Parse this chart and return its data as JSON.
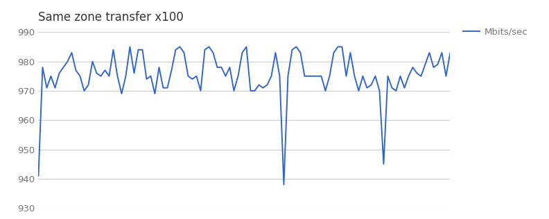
{
  "title": "Same zone transfer x100",
  "legend_label": "Mbits/sec",
  "line_color": "#3366cc",
  "background_color": "#ffffff",
  "ylim": [
    930,
    992
  ],
  "yticks": [
    930,
    940,
    950,
    960,
    970,
    980,
    990
  ],
  "title_fontsize": 12,
  "line_width": 1.4,
  "values": [
    941,
    978,
    971,
    975,
    971,
    976,
    978,
    980,
    983,
    977,
    975,
    970,
    972,
    980,
    976,
    975,
    977,
    975,
    984,
    975,
    969,
    975,
    985,
    976,
    984,
    984,
    974,
    975,
    969,
    978,
    971,
    971,
    977,
    984,
    985,
    983,
    975,
    974,
    975,
    970,
    984,
    985,
    983,
    978,
    978,
    975,
    978,
    970,
    975,
    983,
    985,
    970,
    970,
    972,
    971,
    972,
    975,
    983,
    975,
    938,
    975,
    984,
    985,
    983,
    975,
    975,
    975,
    975,
    975,
    970,
    975,
    983,
    985,
    985,
    975,
    983,
    975,
    970,
    975,
    971,
    972,
    975,
    970,
    945,
    975,
    971,
    970,
    975,
    971,
    975,
    978,
    976,
    975,
    979,
    983,
    978,
    979,
    983,
    975,
    983
  ]
}
